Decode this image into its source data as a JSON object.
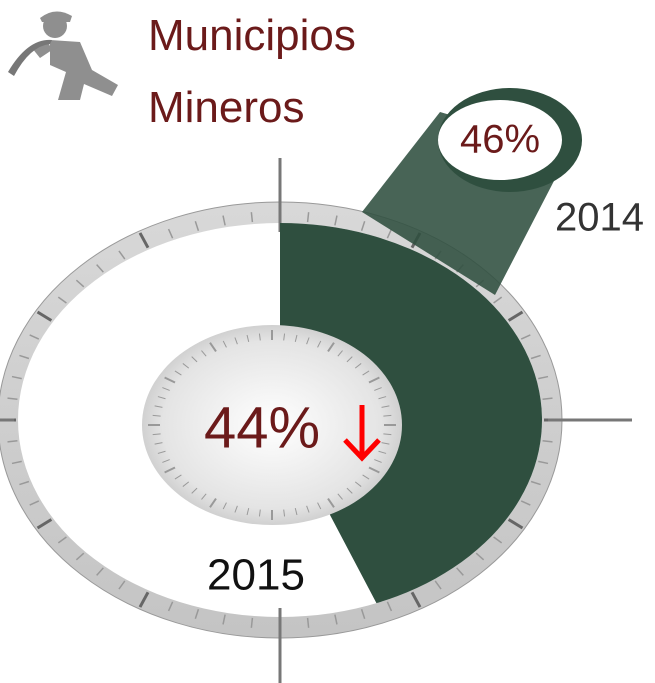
{
  "chart_data": {
    "type": "gauge",
    "title": "Municipios Mineros",
    "categories": [
      "2015",
      "2014"
    ],
    "values": [
      44,
      46
    ],
    "value_labels": [
      "44%",
      "46%"
    ],
    "color": "#2f4f3f",
    "label_color": "#6b1a1a",
    "trend_color": "#ff0000"
  }
}
